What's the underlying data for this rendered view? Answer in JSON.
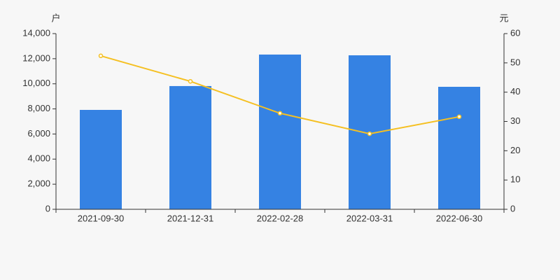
{
  "chart_data": {
    "type": "bar-line",
    "y_label": "户",
    "y2_label": "元",
    "categories": [
      "2021-09-30",
      "2021-12-31",
      "2022-02-28",
      "2022-03-31",
      "2022-06-30"
    ],
    "series": [
      {
        "type": "bar",
        "color": "#3582e3",
        "values": [
          7920,
          9820,
          12330,
          12270,
          9760
        ]
      },
      {
        "type": "line",
        "axis": "y2",
        "color": "#f5c022",
        "values": [
          52.4,
          43.7,
          32.8,
          25.8,
          31.6
        ]
      }
    ],
    "ylim": [
      0,
      14000
    ],
    "yticks": [
      0,
      {
        "value": 2000,
        "label": "2,000"
      },
      {
        "value": 4000,
        "label": "4,000"
      },
      {
        "value": 6000,
        "label": "6,000"
      },
      {
        "value": 8000,
        "label": "8,000"
      },
      {
        "value": 10000,
        "label": "10,000"
      },
      {
        "value": 12000,
        "label": "12,000"
      },
      {
        "value": 14000,
        "label": "14,000"
      }
    ],
    "y2lim": [
      0,
      60
    ],
    "y2ticks": [
      0,
      10,
      20,
      30,
      40,
      50,
      60
    ],
    "grid": false
  }
}
